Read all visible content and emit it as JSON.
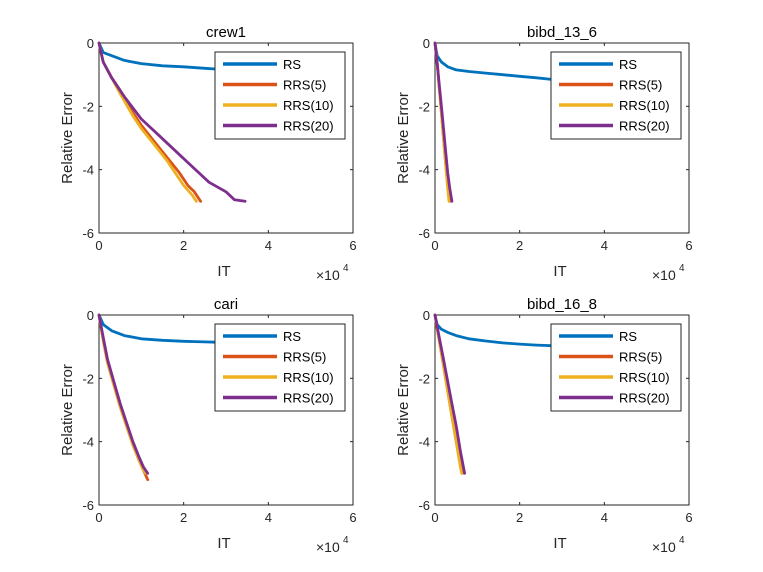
{
  "figure": {
    "legend_location": "top-right",
    "x_multiplier_label": "×10",
    "x_multiplier_exponent": "4",
    "colors": {
      "RS": "#0072BD",
      "RRS(5)": "#D95319",
      "RRS(10)": "#EDB120",
      "RRS(20)": "#7E2F8E",
      "axis": "#262626"
    }
  },
  "chart_data": [
    {
      "type": "line",
      "title": "crew1",
      "xlabel": "IT",
      "ylabel": "Relative Error",
      "xlim": [
        0,
        6
      ],
      "ylim": [
        -6,
        0
      ],
      "x_ticks": [
        "0",
        "2",
        "4",
        "6"
      ],
      "y_ticks": [
        "0",
        "-2",
        "-4",
        "-6"
      ],
      "grid": false,
      "legend": [
        "RS",
        "RRS(5)",
        "RRS(10)",
        "RRS(20)"
      ],
      "series": [
        {
          "name": "RS",
          "x": [
            0,
            0.1,
            0.3,
            0.6,
            1.0,
            1.5,
            2.0,
            2.5,
            2.75
          ],
          "y": [
            0,
            -0.3,
            -0.4,
            -0.55,
            -0.65,
            -0.72,
            -0.75,
            -0.8,
            -0.82
          ]
        },
        {
          "name": "RRS(5)",
          "x": [
            0,
            0.1,
            0.3,
            0.5,
            0.8,
            1.0,
            1.3,
            1.6,
            1.9,
            2.1,
            2.25,
            2.4
          ],
          "y": [
            0,
            -0.6,
            -1.1,
            -1.5,
            -2.2,
            -2.6,
            -3.1,
            -3.6,
            -4.1,
            -4.5,
            -4.7,
            -5.0
          ]
        },
        {
          "name": "RRS(10)",
          "x": [
            0,
            0.1,
            0.3,
            0.5,
            0.8,
            1.0,
            1.3,
            1.6,
            1.8,
            2.0,
            2.2,
            2.3
          ],
          "y": [
            0,
            -0.6,
            -1.1,
            -1.6,
            -2.3,
            -2.7,
            -3.2,
            -3.7,
            -4.1,
            -4.5,
            -4.8,
            -5.0
          ]
        },
        {
          "name": "RRS(20)",
          "x": [
            0,
            0.1,
            0.3,
            0.6,
            1.0,
            1.4,
            1.8,
            2.2,
            2.6,
            3.0,
            3.2,
            3.45
          ],
          "y": [
            0,
            -0.6,
            -1.1,
            -1.7,
            -2.4,
            -2.9,
            -3.4,
            -3.9,
            -4.4,
            -4.7,
            -4.95,
            -5.0
          ]
        }
      ]
    },
    {
      "type": "line",
      "title": "bibd_13_6",
      "xlabel": "IT",
      "ylabel": "Relative Error",
      "xlim": [
        0,
        6
      ],
      "ylim": [
        -6,
        0
      ],
      "x_ticks": [
        "0",
        "2",
        "4",
        "6"
      ],
      "y_ticks": [
        "0",
        "-2",
        "-4",
        "-6"
      ],
      "grid": false,
      "legend": [
        "RS",
        "RRS(5)",
        "RRS(10)",
        "RRS(20)"
      ],
      "series": [
        {
          "name": "RS",
          "x": [
            0,
            0.05,
            0.15,
            0.3,
            0.5,
            0.8,
            1.2,
            1.6,
            2.0,
            2.4,
            2.75
          ],
          "y": [
            0,
            -0.4,
            -0.6,
            -0.75,
            -0.85,
            -0.9,
            -0.95,
            -1.0,
            -1.05,
            -1.1,
            -1.15
          ]
        },
        {
          "name": "RRS(5)",
          "x": [
            0,
            0.05,
            0.1,
            0.15,
            0.2,
            0.25,
            0.3,
            0.35
          ],
          "y": [
            0,
            -0.6,
            -1.4,
            -2.2,
            -3.0,
            -3.8,
            -4.5,
            -5.0
          ]
        },
        {
          "name": "RRS(10)",
          "x": [
            0,
            0.05,
            0.1,
            0.15,
            0.2,
            0.25,
            0.3,
            0.33
          ],
          "y": [
            0,
            -0.6,
            -1.4,
            -2.2,
            -3.0,
            -3.8,
            -4.6,
            -5.0
          ]
        },
        {
          "name": "RRS(20)",
          "x": [
            0,
            0.05,
            0.1,
            0.15,
            0.2,
            0.25,
            0.3,
            0.35,
            0.4
          ],
          "y": [
            0,
            -0.6,
            -1.3,
            -2.0,
            -2.7,
            -3.4,
            -4.1,
            -4.6,
            -5.0
          ]
        }
      ]
    },
    {
      "type": "line",
      "title": "cari",
      "xlabel": "IT",
      "ylabel": "Relative Error",
      "xlim": [
        0,
        6
      ],
      "ylim": [
        -6,
        0
      ],
      "x_ticks": [
        "0",
        "2",
        "4",
        "6"
      ],
      "y_ticks": [
        "0",
        "-2",
        "-4",
        "-6"
      ],
      "grid": false,
      "legend": [
        "RS",
        "RRS(5)",
        "RRS(10)",
        "RRS(20)"
      ],
      "series": [
        {
          "name": "RS",
          "x": [
            0,
            0.1,
            0.3,
            0.6,
            1.0,
            1.5,
            2.0,
            2.5,
            2.75
          ],
          "y": [
            0,
            -0.3,
            -0.5,
            -0.65,
            -0.75,
            -0.8,
            -0.83,
            -0.85,
            -0.86
          ]
        },
        {
          "name": "RRS(5)",
          "x": [
            0,
            0.1,
            0.2,
            0.35,
            0.5,
            0.65,
            0.8,
            0.95,
            1.05,
            1.15
          ],
          "y": [
            0,
            -0.8,
            -1.5,
            -2.2,
            -2.9,
            -3.5,
            -4.1,
            -4.6,
            -4.9,
            -5.2
          ]
        },
        {
          "name": "RRS(10)",
          "x": [
            0,
            0.1,
            0.2,
            0.35,
            0.5,
            0.65,
            0.8,
            0.95,
            1.05,
            1.1
          ],
          "y": [
            0,
            -0.8,
            -1.5,
            -2.2,
            -2.9,
            -3.5,
            -4.1,
            -4.6,
            -4.9,
            -5.0
          ]
        },
        {
          "name": "RRS(20)",
          "x": [
            0,
            0.1,
            0.2,
            0.35,
            0.5,
            0.65,
            0.8,
            0.95,
            1.05,
            1.15
          ],
          "y": [
            0,
            -0.7,
            -1.4,
            -2.1,
            -2.8,
            -3.4,
            -4.0,
            -4.5,
            -4.8,
            -5.0
          ]
        }
      ]
    },
    {
      "type": "line",
      "title": "bibd_16_8",
      "xlabel": "IT",
      "ylabel": "Relative Error",
      "xlim": [
        0,
        6
      ],
      "ylim": [
        -6,
        0
      ],
      "x_ticks": [
        "0",
        "2",
        "4",
        "6"
      ],
      "y_ticks": [
        "0",
        "-2",
        "-4",
        "-6"
      ],
      "grid": false,
      "legend": [
        "RS",
        "RRS(5)",
        "RRS(10)",
        "RRS(20)"
      ],
      "series": [
        {
          "name": "RS",
          "x": [
            0,
            0.05,
            0.15,
            0.3,
            0.5,
            0.8,
            1.2,
            1.6,
            2.0,
            2.4,
            2.75
          ],
          "y": [
            0,
            -0.3,
            -0.45,
            -0.55,
            -0.65,
            -0.75,
            -0.82,
            -0.88,
            -0.92,
            -0.95,
            -0.97
          ]
        },
        {
          "name": "RRS(5)",
          "x": [
            0,
            0.1,
            0.2,
            0.3,
            0.4,
            0.5,
            0.6,
            0.65
          ],
          "y": [
            0,
            -0.8,
            -1.6,
            -2.4,
            -3.2,
            -4.0,
            -4.7,
            -5.0
          ]
        },
        {
          "name": "RRS(10)",
          "x": [
            0,
            0.1,
            0.2,
            0.3,
            0.4,
            0.5,
            0.6,
            0.63
          ],
          "y": [
            0,
            -0.8,
            -1.6,
            -2.4,
            -3.2,
            -4.0,
            -4.8,
            -5.0
          ]
        },
        {
          "name": "RRS(20)",
          "x": [
            0,
            0.1,
            0.2,
            0.3,
            0.4,
            0.5,
            0.6,
            0.7
          ],
          "y": [
            0,
            -0.7,
            -1.4,
            -2.1,
            -2.8,
            -3.5,
            -4.3,
            -5.0
          ]
        }
      ]
    }
  ]
}
